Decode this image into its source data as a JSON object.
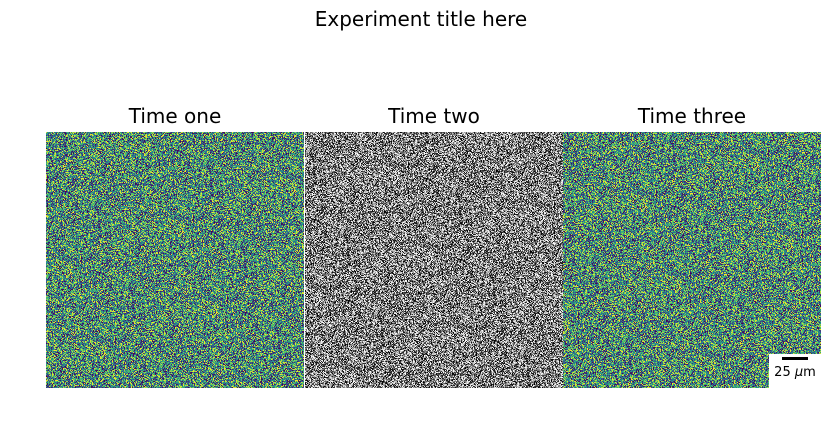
{
  "chart_data": {
    "type": "heatmap",
    "title": "Experiment title here",
    "panels": [
      {
        "title": "Time one",
        "colormap": "viridis",
        "data": "random noise"
      },
      {
        "title": "Time two",
        "colormap": "gray",
        "data": "random noise"
      },
      {
        "title": "Time three",
        "colormap": "viridis",
        "data": "random noise"
      }
    ],
    "scalebar": {
      "value": "25",
      "unit": "μm",
      "unit_prefix": "μ",
      "unit_base": "m"
    },
    "axes_visible": false
  },
  "colors": {
    "viridis": [
      "#440154",
      "#3b528b",
      "#21918c",
      "#5ec962",
      "#fde725"
    ],
    "gray": [
      "#000000",
      "#ffffff"
    ]
  }
}
